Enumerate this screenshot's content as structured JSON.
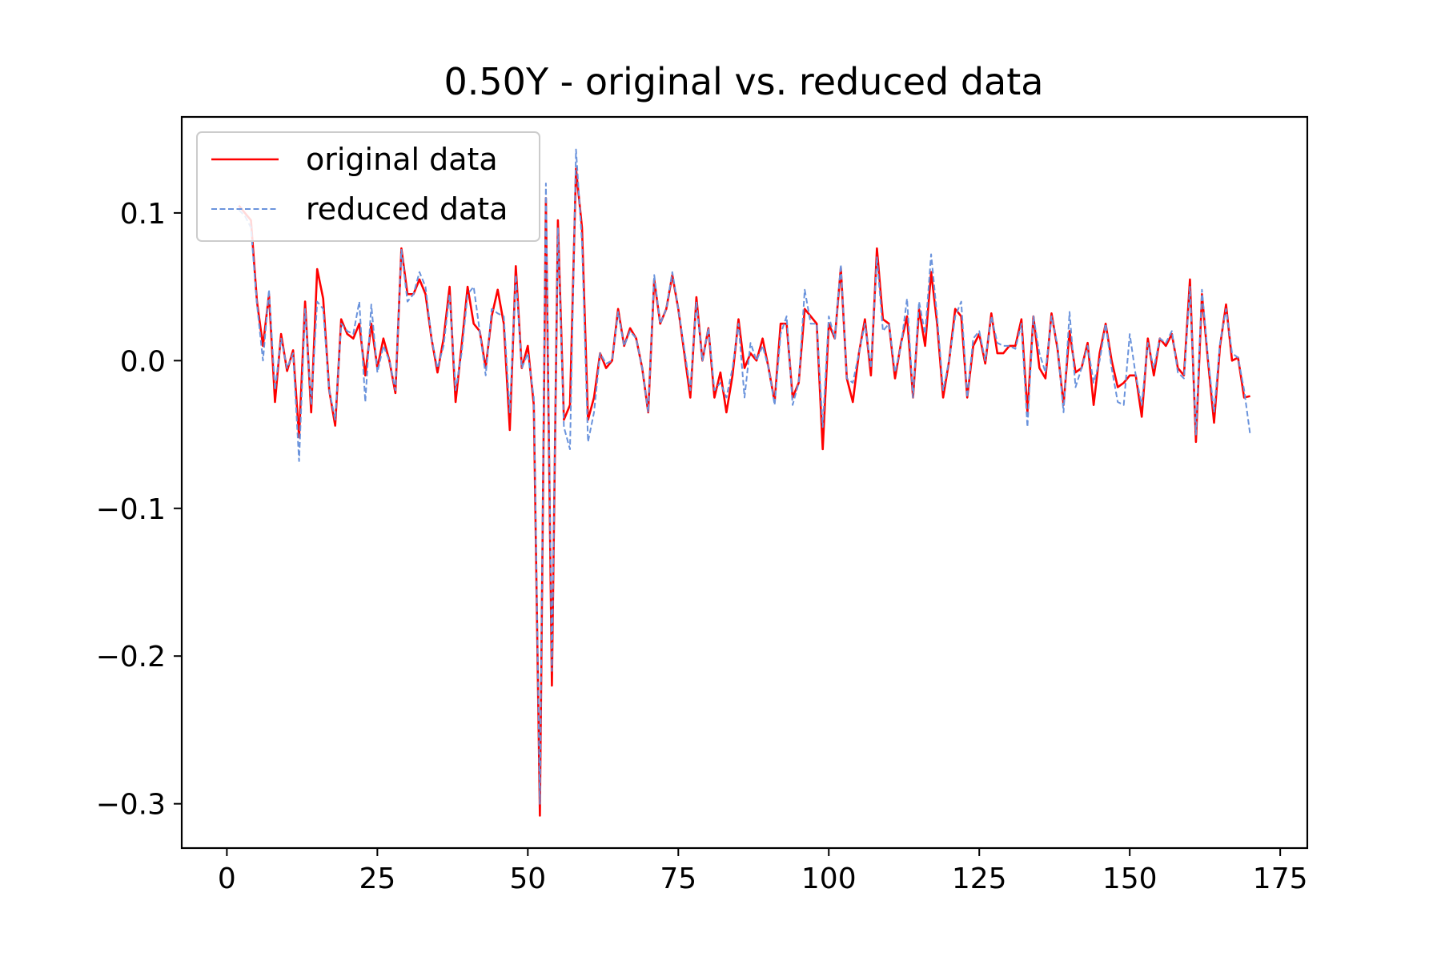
{
  "chart_data": {
    "type": "line",
    "title": "0.50Y - original vs. reduced data",
    "xlabel": "",
    "ylabel": "",
    "xlim": [
      -7.5,
      179.5
    ],
    "ylim": [
      -0.33,
      0.165
    ],
    "xticks": [
      0,
      25,
      50,
      75,
      100,
      125,
      150,
      175
    ],
    "xtick_labels": [
      "0",
      "25",
      "50",
      "75",
      "100",
      "125",
      "150",
      "175"
    ],
    "yticks": [
      0.1,
      0.0,
      -0.1,
      -0.2,
      -0.3
    ],
    "ytick_labels": [
      "0.1",
      "0.0",
      "−0.1",
      "−0.2",
      "−0.3"
    ],
    "grid": false,
    "legend": {
      "position": "top-left",
      "entries": [
        "original data",
        "reduced data"
      ]
    },
    "series": [
      {
        "name": "original data",
        "color": "#ff0000",
        "style": "solid",
        "values": [
          0.105,
          0.1,
          0.095,
          0.04,
          0.01,
          0.045,
          -0.028,
          0.018,
          -0.007,
          0.007,
          -0.052,
          0.04,
          -0.035,
          0.062,
          0.042,
          -0.02,
          -0.044,
          0.028,
          0.018,
          0.015,
          0.025,
          -0.01,
          0.025,
          -0.005,
          0.015,
          0.0,
          -0.022,
          0.076,
          0.045,
          0.045,
          0.055,
          0.045,
          0.015,
          -0.008,
          0.015,
          0.05,
          -0.028,
          0.01,
          0.05,
          0.025,
          0.02,
          -0.005,
          0.03,
          0.048,
          0.025,
          -0.047,
          0.064,
          -0.005,
          0.01,
          -0.03,
          -0.308,
          0.11,
          -0.22,
          0.095,
          -0.04,
          -0.03,
          0.13,
          0.09,
          -0.04,
          -0.025,
          0.005,
          -0.005,
          0.0,
          0.035,
          0.01,
          0.022,
          0.015,
          -0.005,
          -0.035,
          0.055,
          0.025,
          0.035,
          0.058,
          0.035,
          0.005,
          -0.025,
          0.043,
          0.0,
          0.022,
          -0.025,
          -0.008,
          -0.035,
          -0.01,
          0.028,
          -0.005,
          0.005,
          0.0,
          0.015,
          -0.005,
          -0.028,
          0.025,
          0.025,
          -0.025,
          -0.015,
          0.035,
          0.03,
          0.025,
          -0.06,
          0.025,
          0.015,
          0.063,
          -0.012,
          -0.028,
          0.005,
          0.028,
          -0.01,
          0.076,
          0.028,
          0.025,
          -0.012,
          0.012,
          0.03,
          -0.025,
          0.035,
          0.01,
          0.06,
          0.025,
          -0.025,
          0.0,
          0.035,
          0.03,
          -0.025,
          0.01,
          0.018,
          -0.002,
          0.032,
          0.005,
          0.005,
          0.01,
          0.01,
          0.028,
          -0.035,
          0.03,
          -0.005,
          -0.012,
          0.032,
          0.008,
          -0.03,
          0.02,
          -0.008,
          -0.005,
          0.012,
          -0.03,
          0.005,
          0.025,
          0.0,
          -0.018,
          -0.015,
          -0.01,
          -0.01,
          -0.038,
          0.015,
          -0.01,
          0.015,
          0.01,
          0.018,
          -0.005,
          -0.01,
          0.055,
          -0.055,
          0.045,
          0.0,
          -0.042,
          0.01,
          0.038,
          0.0,
          0.002,
          -0.025,
          -0.024
        ]
      },
      {
        "name": "reduced data",
        "color": "#6a93dc",
        "style": "dashed",
        "values": [
          0.102,
          0.098,
          0.09,
          0.038,
          0.0,
          0.048,
          -0.02,
          0.015,
          -0.005,
          0.005,
          -0.068,
          0.035,
          -0.03,
          0.04,
          0.035,
          -0.02,
          -0.04,
          0.025,
          0.02,
          0.018,
          0.04,
          -0.028,
          0.038,
          -0.008,
          0.01,
          0.0,
          -0.02,
          0.075,
          0.04,
          0.045,
          0.06,
          0.05,
          0.015,
          -0.005,
          0.01,
          0.045,
          -0.02,
          0.005,
          0.045,
          0.05,
          0.02,
          -0.01,
          0.035,
          0.032,
          0.03,
          -0.035,
          0.058,
          -0.005,
          0.005,
          -0.025,
          -0.3,
          0.12,
          -0.21,
          0.09,
          -0.045,
          -0.06,
          0.143,
          0.08,
          -0.055,
          -0.035,
          0.005,
          -0.002,
          0.0,
          0.033,
          0.01,
          0.02,
          0.015,
          -0.005,
          -0.035,
          0.058,
          0.025,
          0.035,
          0.06,
          0.035,
          0.008,
          -0.02,
          0.04,
          0.0,
          0.022,
          -0.02,
          -0.015,
          -0.025,
          -0.005,
          0.025,
          -0.025,
          0.012,
          0.0,
          0.01,
          -0.005,
          -0.03,
          0.018,
          0.03,
          -0.03,
          -0.015,
          0.048,
          0.025,
          0.025,
          -0.045,
          0.03,
          0.015,
          0.065,
          -0.012,
          -0.015,
          0.005,
          0.025,
          -0.005,
          0.07,
          0.02,
          0.025,
          -0.008,
          0.01,
          0.042,
          -0.025,
          0.04,
          0.018,
          0.072,
          0.03,
          -0.02,
          0.0,
          0.03,
          0.04,
          -0.025,
          0.015,
          0.02,
          0.0,
          0.03,
          0.012,
          0.01,
          0.01,
          0.008,
          0.025,
          -0.045,
          0.03,
          0.005,
          -0.008,
          0.03,
          0.01,
          -0.035,
          0.033,
          -0.018,
          -0.005,
          0.01,
          -0.015,
          0.0,
          0.025,
          -0.005,
          -0.028,
          -0.03,
          0.018,
          -0.01,
          -0.03,
          0.012,
          -0.005,
          0.015,
          0.012,
          0.02,
          -0.008,
          -0.012,
          0.05,
          -0.05,
          0.048,
          0.002,
          -0.035,
          0.012,
          0.035,
          0.005,
          0.002,
          -0.02,
          -0.05
        ]
      }
    ]
  }
}
